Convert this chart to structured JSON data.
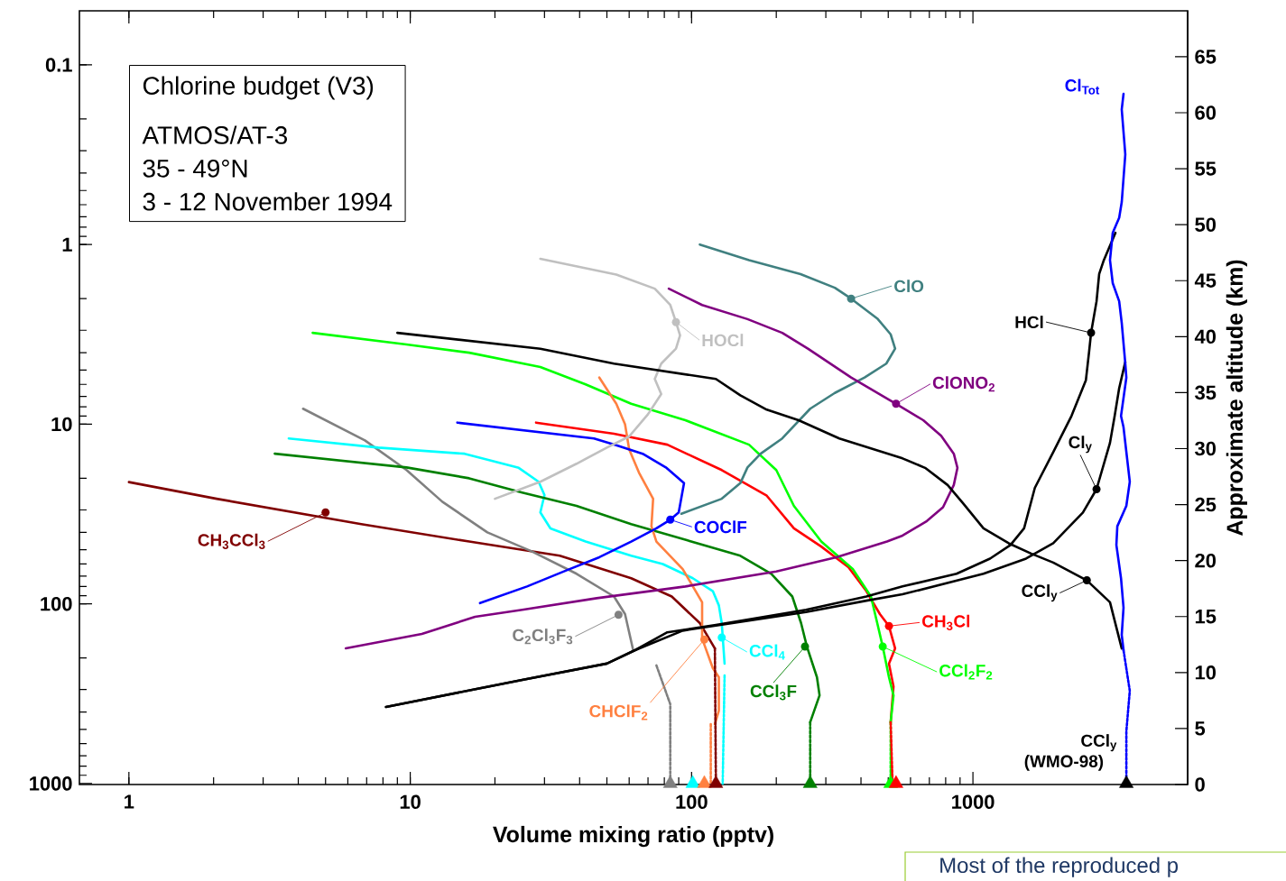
{
  "chart_data": {
    "type": "line",
    "log": "xy",
    "xlabel": "Volume mixing ratio (pptv)",
    "y2label": "Approximate altitude (km)",
    "xlim": [
      0.667,
      5800
    ],
    "xticks": [
      1,
      10,
      100,
      1000
    ],
    "ylim": [
      1013,
      0.05
    ],
    "yticks": [
      0.1,
      1,
      10,
      100,
      1000
    ],
    "y2lim": [
      0,
      69.1
    ],
    "y2ticks": [
      0,
      5,
      10,
      15,
      20,
      25,
      30,
      35,
      40,
      45,
      50,
      55,
      60,
      65
    ],
    "marker": "none",
    "grid": false,
    "series": [
      {
        "color": "#800000",
        "x": [
          1,
          2.05,
          6.7,
          16.2,
          34,
          61,
          85,
          107,
          121
        ],
        "values": [
          21,
          26,
          36,
          45,
          54,
          72,
          91,
          128,
          177
        ]
      },
      {
        "color": "#808080",
        "x": [
          4.16,
          6.9,
          9.7,
          13,
          18.8,
          27,
          39,
          53,
          58,
          62
        ],
        "values": [
          8.2,
          12.3,
          18,
          27,
          40,
          51,
          68,
          91,
          114,
          181
        ]
      },
      {
        "color": "#00ffff",
        "x": [
          3.7,
          7.7,
          15.6,
          24.3,
          28.6,
          30,
          29,
          31.5,
          42,
          61,
          79,
          101,
          119,
          125,
          128,
          130,
          131
        ],
        "values": [
          12,
          13.5,
          14.6,
          17.5,
          20.9,
          24.8,
          31,
          38,
          45,
          54,
          60,
          72,
          85,
          102,
          128,
          181,
          215
        ]
      },
      {
        "color": "#008000",
        "x": [
          3.3,
          9.7,
          16.2,
          25,
          39,
          61,
          95,
          149,
          192,
          228,
          245,
          257,
          279,
          285,
          264
        ],
        "values": [
          14.6,
          17.4,
          20,
          24,
          28.5,
          36,
          44,
          54,
          68,
          91,
          128,
          173,
          256,
          323,
          456
        ]
      },
      {
        "color": "#ff0000",
        "x": [
          28,
          53,
          82,
          128,
          185,
          231,
          289,
          361,
          418,
          467,
          503,
          529,
          503,
          522,
          510
        ],
        "values": [
          9.8,
          11.3,
          13,
          18,
          25,
          38,
          48,
          62.5,
          85,
          114,
          133,
          177,
          215,
          288,
          456
        ]
      },
      {
        "color": "#00ff00",
        "x": [
          4.5,
          9.7,
          16.2,
          29,
          42,
          61,
          95,
          160,
          200,
          231,
          289,
          374,
          434,
          457,
          478,
          503,
          522,
          510
        ],
        "values": [
          3.1,
          3.6,
          4,
          4.8,
          6,
          7.7,
          9.5,
          13,
          18,
          28.5,
          45,
          64,
          91,
          128,
          173,
          256,
          323,
          456
        ]
      },
      {
        "color": "#ff8040",
        "x": [
          47,
          54,
          58,
          60,
          65,
          73,
          72,
          75,
          93,
          109,
          109,
          119,
          125,
          125,
          121
        ],
        "values": [
          5.5,
          7.7,
          10,
          13.8,
          18.6,
          26,
          37,
          45,
          64,
          98,
          156,
          228,
          256,
          393,
          467
        ]
      },
      {
        "color": "#0000ff",
        "x": [
          14.7,
          45,
          54,
          67,
          81,
          94,
          90,
          84,
          75,
          61,
          47,
          36,
          26,
          17.7
        ],
        "values": [
          9.8,
          12,
          13.1,
          14.6,
          17.4,
          21.3,
          31,
          34,
          38,
          45,
          55,
          65,
          80,
          99
        ]
      },
      {
        "color": "#c0c0c0",
        "x": [
          29,
          54,
          74,
          84,
          88,
          91,
          88,
          78,
          74,
          78,
          70,
          60,
          50,
          39,
          29,
          20
        ],
        "values": [
          1.2,
          1.47,
          1.76,
          2.17,
          2.7,
          3.2,
          3.8,
          4.6,
          5.6,
          6.8,
          8.8,
          11.7,
          13.5,
          16.6,
          20.9,
          26
        ]
      },
      {
        "color": "#408080",
        "x": [
          107,
          160,
          244,
          323,
          369,
          457,
          510,
          529,
          492,
          412,
          323,
          264,
          210,
          176,
          158,
          149,
          128,
          92
        ],
        "values": [
          1.0,
          1.22,
          1.46,
          1.74,
          2.0,
          2.58,
          3.16,
          3.8,
          4.6,
          5.5,
          6.7,
          8.2,
          12,
          14.6,
          17.4,
          21.3,
          26,
          31.5
        ]
      },
      {
        "color": "#800080",
        "x": [
          83,
          109,
          158,
          210,
          259,
          369,
          533,
          666,
          771,
          855,
          881,
          855,
          783,
          686,
          562,
          495,
          327,
          200,
          95,
          46,
          25,
          17,
          11,
          5.9
        ],
        "values": [
          1.76,
          2.17,
          2.6,
          3.1,
          3.8,
          5.5,
          7.7,
          9.5,
          11.6,
          14.6,
          17.5,
          21.8,
          29,
          34.6,
          41.7,
          45,
          55,
          66,
          80,
          93,
          108,
          118,
          147,
          177
        ]
      },
      {
        "color": "#000000",
        "x": [
          8.2,
          25,
          50,
          63,
          82,
          122,
          255,
          418,
          562,
          875,
          1150,
          1360,
          1520,
          1660,
          1930,
          2240,
          2520,
          2590,
          2630,
          2750,
          2810,
          2920,
          3210
        ],
        "values": [
          375,
          265,
          215,
          181,
          144,
          131,
          108,
          91,
          80,
          68,
          56,
          47,
          38,
          22.6,
          14.3,
          9.0,
          5.7,
          3.9,
          3.1,
          2.07,
          1.46,
          1.22,
          0.86
        ]
      },
      {
        "color": "#000000",
        "x": [
          8.2,
          25,
          50,
          63,
          93,
          255,
          418,
          562,
          1090,
          1545,
          1930,
          2460,
          2750,
          3070,
          3190,
          3310,
          3480
        ],
        "values": [
          375,
          265,
          215,
          181,
          141,
          111,
          96,
          88.5,
          68,
          56,
          46,
          31,
          23,
          12.7,
          9.0,
          6.3,
          4.5
        ]
      },
      {
        "color": "#000000",
        "x": [
          9.0,
          29,
          53,
          122,
          149,
          185,
          240,
          335,
          562,
          676,
          813,
          921,
          1090,
          1340,
          1610,
          1930,
          2540,
          3070,
          3380
        ],
        "values": [
          3.1,
          3.8,
          4.6,
          5.6,
          6.9,
          8.3,
          9.5,
          12,
          15.5,
          17.5,
          21.8,
          27.5,
          38,
          46,
          52.5,
          58.9,
          74,
          98,
          177
        ]
      },
      {
        "color": "#0000ff",
        "x": [
          3430,
          3380,
          3480,
          3380,
          3310,
          3140,
          3070,
          3140,
          3310,
          3380,
          3480,
          3510,
          3360,
          3430,
          3610,
          3510,
          3260,
          3235,
          3360,
          3430,
          3380,
          3430
        ],
        "values": [
          0.145,
          0.177,
          0.315,
          0.58,
          0.71,
          0.86,
          1.22,
          1.64,
          2.07,
          2.73,
          4.6,
          5.5,
          9.0,
          10.4,
          20.9,
          28.5,
          37,
          47,
          72,
          105,
          149,
          181
        ]
      },
      {
        "type": "scatter",
        "marker": "triangle",
        "colors": [
          "#808080",
          "#00ffff",
          "#ff8040",
          "#800000",
          "#008000",
          "#00ff00",
          "#ff0000",
          "#000000"
        ],
        "x": [
          84,
          101,
          111,
          122,
          264,
          510,
          533,
          3510
        ],
        "values": [
          1000,
          1000,
          1000,
          1000,
          1000,
          1000,
          1000,
          1000
        ]
      },
      {
        "color": "#808080",
        "line_style": "dashdot",
        "x": [
          75,
          84,
          84
        ],
        "values": [
          220,
          362,
          1000
        ]
      },
      {
        "color": "#00ffff",
        "line_style": "dashdot",
        "x": [
          131,
          129
        ],
        "values": [
          250,
          1000
        ]
      },
      {
        "color": "#ff8040",
        "line_style": "dashdot",
        "x": [
          117,
          117
        ],
        "values": [
          467,
          1000
        ]
      },
      {
        "color": "#800000",
        "line_style": "dashdot",
        "x": [
          121,
          122
        ],
        "values": [
          177,
          1000
        ]
      },
      {
        "color": "#008000",
        "line_style": "dashdot",
        "x": [
          264,
          264
        ],
        "values": [
          456,
          1000
        ]
      },
      {
        "color": "#00ff00",
        "line_style": "dashdot",
        "x": [
          510,
          510
        ],
        "values": [
          456,
          1000
        ]
      },
      {
        "color": "#ff0000",
        "line_style": "dashdot",
        "x": [
          510,
          518
        ],
        "values": [
          456,
          1000
        ]
      },
      {
        "color": "#0000ff",
        "line_style": "dashdot",
        "x": [
          3430,
          3610,
          3510,
          3510
        ],
        "values": [
          181,
          305,
          513,
          1000
        ]
      }
    ],
    "annotations": [
      {
        "text": "CH$_{3}$CCl$_{3}$",
        "x": 5,
        "y": 31
      },
      {
        "text": "C$_{2}$Cl$_{3}$F$_{3}$",
        "x": 55,
        "y": 115
      },
      {
        "text": "CCl$_{4}$",
        "x": 128,
        "y": 154
      },
      {
        "text": "CCl$_{3}$F",
        "x": 253,
        "y": 173
      },
      {
        "text": "CH$_{3}$Cl",
        "x": 503,
        "y": 133
      },
      {
        "text": "CCl$_{2}$F$_{2}$",
        "x": 478,
        "y": 173
      },
      {
        "text": "CHClF$_{2}$",
        "x": 111,
        "y": 158
      },
      {
        "text": "COClF",
        "x": 84,
        "y": 34
      },
      {
        "text": "HOCl",
        "x": 88,
        "y": 2.7
      },
      {
        "text": "ClO",
        "x": 369,
        "y": 2.0
      },
      {
        "text": "ClONO$_{2}$",
        "x": 533,
        "y": 7.7
      },
      {
        "text": "HCl",
        "x": 2630,
        "y": 3.1
      },
      {
        "text": "Cl$_{y}$",
        "x": 2750,
        "y": 23
      },
      {
        "text": "CCl$_{y}$",
        "x": 2540,
        "y": 74
      },
      {
        "text": "Cl$_{Tot}$",
        "x": 3430,
        "y": 0.145
      },
      {
        "text": "CCl$_{y}$ (WMO-98)",
        "x": 3510,
        "y": 1000
      },
      "Chlorine budget  (V3)",
      "ATMOS/AT-3",
      "35 - 49°N",
      "3 - 12 November 1994",
      "Most of the reproduced p"
    ]
  }
}
